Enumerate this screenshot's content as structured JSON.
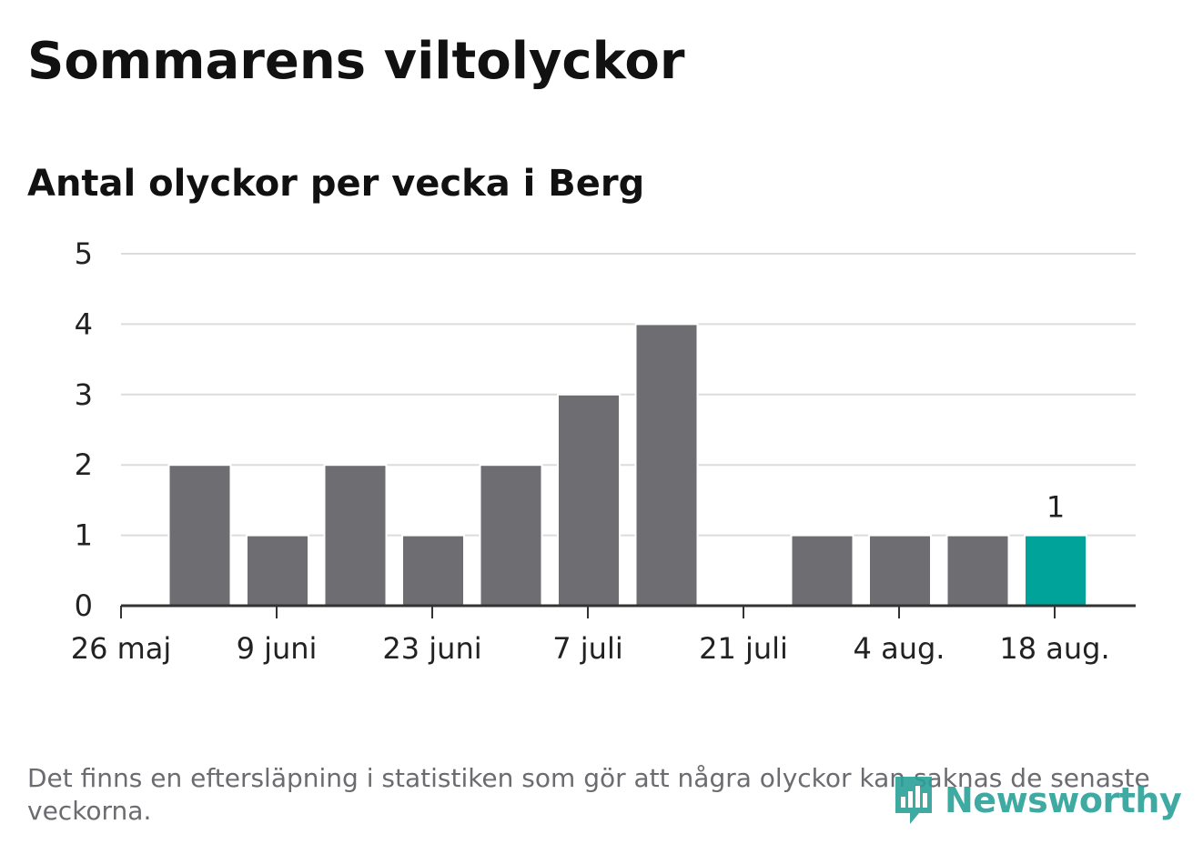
{
  "header": {
    "title": "Sommarens viltolyckor",
    "subtitle": "Antal olyckor per vecka i Berg"
  },
  "chart_data": {
    "type": "bar",
    "title": "Sommarens viltolyckor",
    "subtitle": "Antal olyckor per vecka i Berg",
    "xlabel": "",
    "ylabel": "",
    "ylim": [
      0,
      5
    ],
    "yticks": [
      "0",
      "1",
      "2",
      "3",
      "4",
      "5"
    ],
    "xticks": [
      "26 maj",
      "9 juni",
      "23 juni",
      "7 juli",
      "21 juli",
      "4 aug.",
      "18 aug."
    ],
    "grid": true,
    "bar_color": "#6e6d72",
    "highlight_color": "#00a39a",
    "values": [
      2,
      1,
      2,
      1,
      2,
      3,
      4,
      0,
      1,
      1,
      1,
      1
    ],
    "highlight_index": 11,
    "data_labels": [
      {
        "index": 11,
        "text": "1"
      }
    ]
  },
  "footer": {
    "note": "Det finns en eftersläpning i statistiken som gör att några olyckor kan saknas de senaste veckorna.",
    "brand": "Newsworthy",
    "brand_icon": "newsworthy-logo-icon",
    "brand_color": "#2aa198"
  }
}
